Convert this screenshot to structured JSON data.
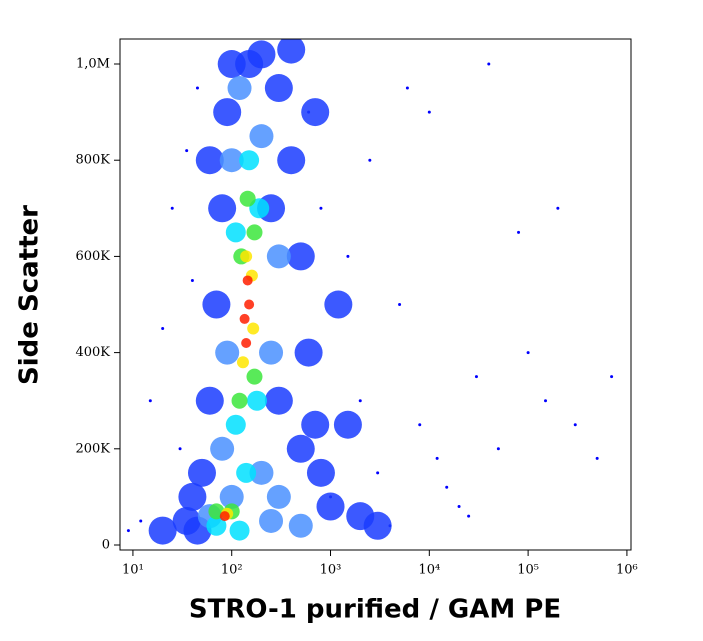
{
  "chart_data": {
    "type": "scatter",
    "x_label": "STRO-1 purified / GAM PE",
    "y_label": "Side Scatter",
    "xscale": "log",
    "xlim": [
      7.4,
      1100000
    ],
    "ylim": [
      -10400,
      1052000
    ],
    "xticks": [
      {
        "value": 10,
        "label": "10¹"
      },
      {
        "value": 100,
        "label": "10²"
      },
      {
        "value": 1000,
        "label": "10³"
      },
      {
        "value": 10000,
        "label": "10⁴"
      },
      {
        "value": 100000,
        "label": "10⁵"
      },
      {
        "value": 1000000,
        "label": "10⁶"
      }
    ],
    "yticks": [
      0,
      {
        "value": 200000,
        "label": "200K"
      },
      {
        "value": 400000,
        "label": "400K"
      },
      {
        "value": 600000,
        "label": "600K"
      },
      {
        "value": 800000,
        "label": "800K"
      },
      {
        "value": 1000000,
        "label": "1,0M"
      }
    ],
    "grid": false,
    "series": [
      {
        "color": "#0000ff",
        "x": [
          15,
          20,
          25,
          30,
          35,
          40,
          45,
          600,
          800,
          1500,
          2000,
          3000,
          5000,
          8000,
          12000,
          20000,
          30000,
          50000,
          80000,
          150000,
          300000,
          500000,
          10000,
          40000,
          200000,
          700000,
          9,
          12,
          4000,
          1000,
          2500,
          6000,
          100000,
          25000,
          15000
        ],
        "values": [
          300000,
          450000,
          700000,
          200000,
          820000,
          550000,
          950000,
          900000,
          700000,
          600000,
          300000,
          150000,
          500000,
          250000,
          180000,
          80000,
          350000,
          200000,
          650000,
          300000,
          250000,
          180000,
          900000,
          1000000,
          700000,
          350000,
          30000,
          50000,
          40000,
          100000,
          800000,
          950000,
          400000,
          60000,
          120000
        ]
      },
      {
        "color": "#1a3cff",
        "x": [
          50,
          60,
          70,
          80,
          90,
          100,
          200,
          300,
          400,
          500,
          600,
          700,
          800,
          1000,
          2000,
          3000,
          40,
          35,
          60,
          300,
          500,
          250,
          700,
          1200,
          1500,
          20,
          45,
          150,
          400
        ],
        "values": [
          150000,
          300000,
          500000,
          700000,
          900000,
          1000000,
          1020000,
          950000,
          800000,
          600000,
          400000,
          250000,
          150000,
          80000,
          60000,
          40000,
          100000,
          50000,
          800000,
          300000,
          200000,
          700000,
          900000,
          500000,
          250000,
          30000,
          30000,
          1000000,
          1030000
        ]
      },
      {
        "color": "#4a90ff",
        "x": [
          80,
          100,
          200,
          250,
          300,
          90,
          200,
          100,
          120,
          300,
          500,
          60,
          250
        ],
        "values": [
          200000,
          100000,
          150000,
          400000,
          600000,
          400000,
          850000,
          800000,
          950000,
          100000,
          40000,
          60000,
          50000
        ]
      },
      {
        "color": "#00e0ff",
        "x": [
          110,
          180,
          110,
          190,
          150,
          120,
          70,
          140
        ],
        "values": [
          250000,
          300000,
          650000,
          700000,
          800000,
          30000,
          40000,
          150000
        ]
      },
      {
        "color": "#3ce63c",
        "x": [
          120,
          170,
          125,
          170,
          145,
          100,
          70
        ],
        "values": [
          300000,
          350000,
          600000,
          650000,
          720000,
          70000,
          70000
        ]
      },
      {
        "color": "#ffe600",
        "x": [
          130,
          165,
          140,
          160,
          90
        ],
        "values": [
          380000,
          450000,
          600000,
          560000,
          65000
        ]
      },
      {
        "color": "#ff1e00",
        "x": [
          140,
          150,
          145,
          135,
          85
        ],
        "values": [
          420000,
          500000,
          550000,
          470000,
          60000
        ]
      }
    ]
  }
}
